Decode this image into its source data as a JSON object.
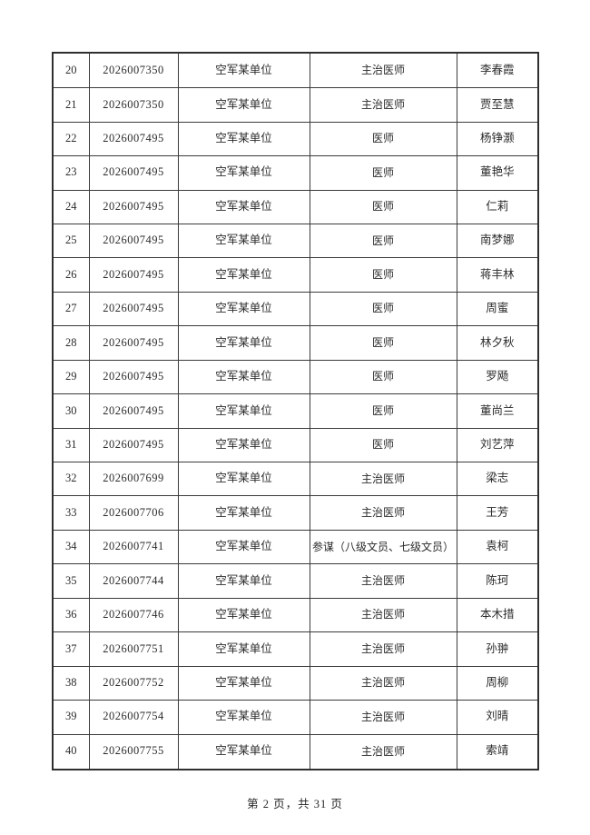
{
  "colors": {
    "background": "#ffffff",
    "text": "#2b2b2b",
    "border": "#3a3a3a"
  },
  "document": {
    "footer_text": "第 2 页，共 31 页"
  },
  "table": {
    "rows": [
      [
        "20",
        "2026007350",
        "空军某单位",
        "主治医师",
        "李春霞"
      ],
      [
        "21",
        "2026007350",
        "空军某单位",
        "主治医师",
        "贾至慧"
      ],
      [
        "22",
        "2026007495",
        "空军某单位",
        "医师",
        "杨铮灏"
      ],
      [
        "23",
        "2026007495",
        "空军某单位",
        "医师",
        "董艳华"
      ],
      [
        "24",
        "2026007495",
        "空军某单位",
        "医师",
        "仁莉"
      ],
      [
        "25",
        "2026007495",
        "空军某单位",
        "医师",
        "南梦娜"
      ],
      [
        "26",
        "2026007495",
        "空军某单位",
        "医师",
        "蒋丰林"
      ],
      [
        "27",
        "2026007495",
        "空军某单位",
        "医师",
        "周蜜"
      ],
      [
        "28",
        "2026007495",
        "空军某单位",
        "医师",
        "林夕秋"
      ],
      [
        "29",
        "2026007495",
        "空军某单位",
        "医师",
        "罗飏"
      ],
      [
        "30",
        "2026007495",
        "空军某单位",
        "医师",
        "董尚兰"
      ],
      [
        "31",
        "2026007495",
        "空军某单位",
        "医师",
        "刘艺萍"
      ],
      [
        "32",
        "2026007699",
        "空军某单位",
        "主治医师",
        "梁志"
      ],
      [
        "33",
        "2026007706",
        "空军某单位",
        "主治医师",
        "王芳"
      ],
      [
        "34",
        "2026007741",
        "空军某单位",
        "参谋（八级文员、七级文员）",
        "袁柯"
      ],
      [
        "35",
        "2026007744",
        "空军某单位",
        "主治医师",
        "陈珂"
      ],
      [
        "36",
        "2026007746",
        "空军某单位",
        "主治医师",
        "本木措"
      ],
      [
        "37",
        "2026007751",
        "空军某单位",
        "主治医师",
        "孙翀"
      ],
      [
        "38",
        "2026007752",
        "空军某单位",
        "主治医师",
        "周柳"
      ],
      [
        "39",
        "2026007754",
        "空军某单位",
        "主治医师",
        "刘晴"
      ],
      [
        "40",
        "2026007755",
        "空军某单位",
        "主治医师",
        "索靖"
      ]
    ]
  }
}
